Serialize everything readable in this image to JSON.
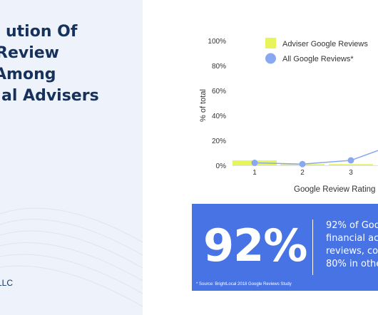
{
  "page": {
    "title_lines": [
      "ution Of",
      "Review",
      "Among",
      "al Advisers"
    ],
    "footer_brand": "LLC"
  },
  "colors": {
    "adviser": "#e6f55a",
    "all": "#8aa8f2",
    "axis_text": "#333333",
    "panel": "#eef3fb",
    "stat_box": "#4873e4",
    "title": "#16325c"
  },
  "chart_data": {
    "type": "bar",
    "categories": [
      "1",
      "2",
      "3"
    ],
    "xlabel": "Google Review Rating",
    "ylabel": "% of total",
    "ylim": [
      0,
      100
    ],
    "yticks": [
      "0%",
      "20%",
      "40%",
      "60%",
      "80%",
      "100%"
    ],
    "legend_position": "top-right",
    "series": [
      {
        "name": "Adviser Google Reviews",
        "type": "bar",
        "color": "#e6f55a",
        "values": [
          4,
          1,
          1
        ]
      },
      {
        "name": "All Google Reviews*",
        "type": "line",
        "color": "#8aa8f2",
        "values": [
          2,
          1,
          4
        ],
        "trailing_value": 14
      }
    ]
  },
  "stat": {
    "big": "92%",
    "lines": [
      "92% of Goo",
      "financial ac",
      "reviews, co",
      "80% in othe"
    ],
    "source": "* Source: BrightLocal 2018 Google Reviews Study"
  }
}
